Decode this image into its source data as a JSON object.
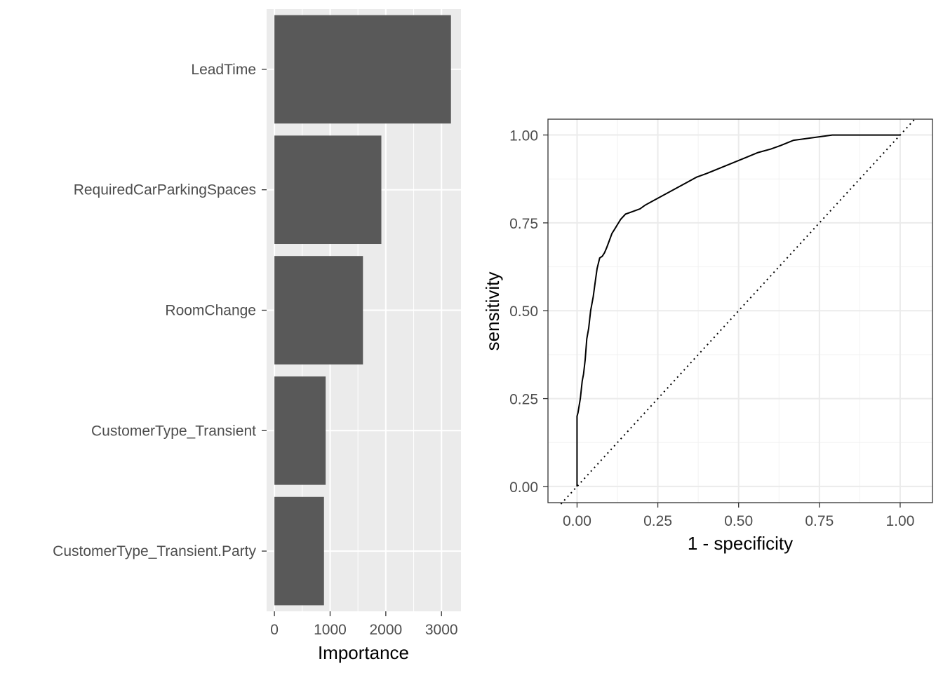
{
  "chart_data": [
    {
      "type": "bar",
      "orientation": "horizontal",
      "categories": [
        "LeadTime",
        "RequiredCarParkingSpaces",
        "RoomChange",
        "CustomerType_Transient",
        "CustomerType_Transient.Party"
      ],
      "values": [
        3170,
        1920,
        1590,
        920,
        890
      ],
      "xlabel": "Importance",
      "ylabel": "",
      "xlim": [
        -140,
        3350
      ],
      "xticks": [
        0,
        1000,
        2000,
        3000
      ],
      "xtick_labels": [
        "0",
        "1000",
        "2000",
        "3000"
      ],
      "grid": true,
      "theme": "grey",
      "bar_color": "#595959"
    },
    {
      "type": "line",
      "xlabel": "1 - specificity",
      "ylabel": "sensitivity",
      "xlim": [
        -0.09,
        1.1
      ],
      "ylim": [
        -0.046,
        1.045
      ],
      "xticks": [
        0,
        0.25,
        0.5,
        0.75,
        1
      ],
      "xtick_labels": [
        "0.00",
        "0.25",
        "0.50",
        "0.75",
        "1.00"
      ],
      "yticks": [
        0,
        0.25,
        0.5,
        0.75,
        1
      ],
      "ytick_labels": [
        "0.00",
        "0.25",
        "0.50",
        "0.75",
        "1.00"
      ],
      "grid": true,
      "theme": "bw",
      "series": [
        {
          "style": "solid",
          "x": [
            0,
            0,
            0.003,
            0.01,
            0.016,
            0.02,
            0.025,
            0.03,
            0.036,
            0.042,
            0.05,
            0.056,
            0.062,
            0.07,
            0.078,
            0.085,
            0.092,
            0.1,
            0.108,
            0.115,
            0.125,
            0.135,
            0.15,
            0.165,
            0.18,
            0.195,
            0.21,
            0.23,
            0.25,
            0.28,
            0.31,
            0.34,
            0.37,
            0.4,
            0.44,
            0.48,
            0.52,
            0.56,
            0.6,
            0.63,
            0.67,
            0.71,
            0.75,
            0.79,
            0.83,
            0.9,
            0.95,
            1
          ],
          "y": [
            0,
            0.2,
            0.21,
            0.25,
            0.3,
            0.32,
            0.36,
            0.42,
            0.45,
            0.5,
            0.54,
            0.58,
            0.62,
            0.65,
            0.655,
            0.665,
            0.68,
            0.7,
            0.72,
            0.73,
            0.745,
            0.76,
            0.775,
            0.78,
            0.785,
            0.79,
            0.8,
            0.81,
            0.82,
            0.835,
            0.85,
            0.865,
            0.88,
            0.89,
            0.905,
            0.92,
            0.935,
            0.95,
            0.96,
            0.97,
            0.985,
            0.99,
            0.995,
            1,
            1,
            1,
            1,
            1
          ]
        },
        {
          "style": "dotted",
          "x": [
            -0.05,
            1.05
          ],
          "y": [
            -0.05,
            1.05
          ]
        }
      ]
    }
  ]
}
